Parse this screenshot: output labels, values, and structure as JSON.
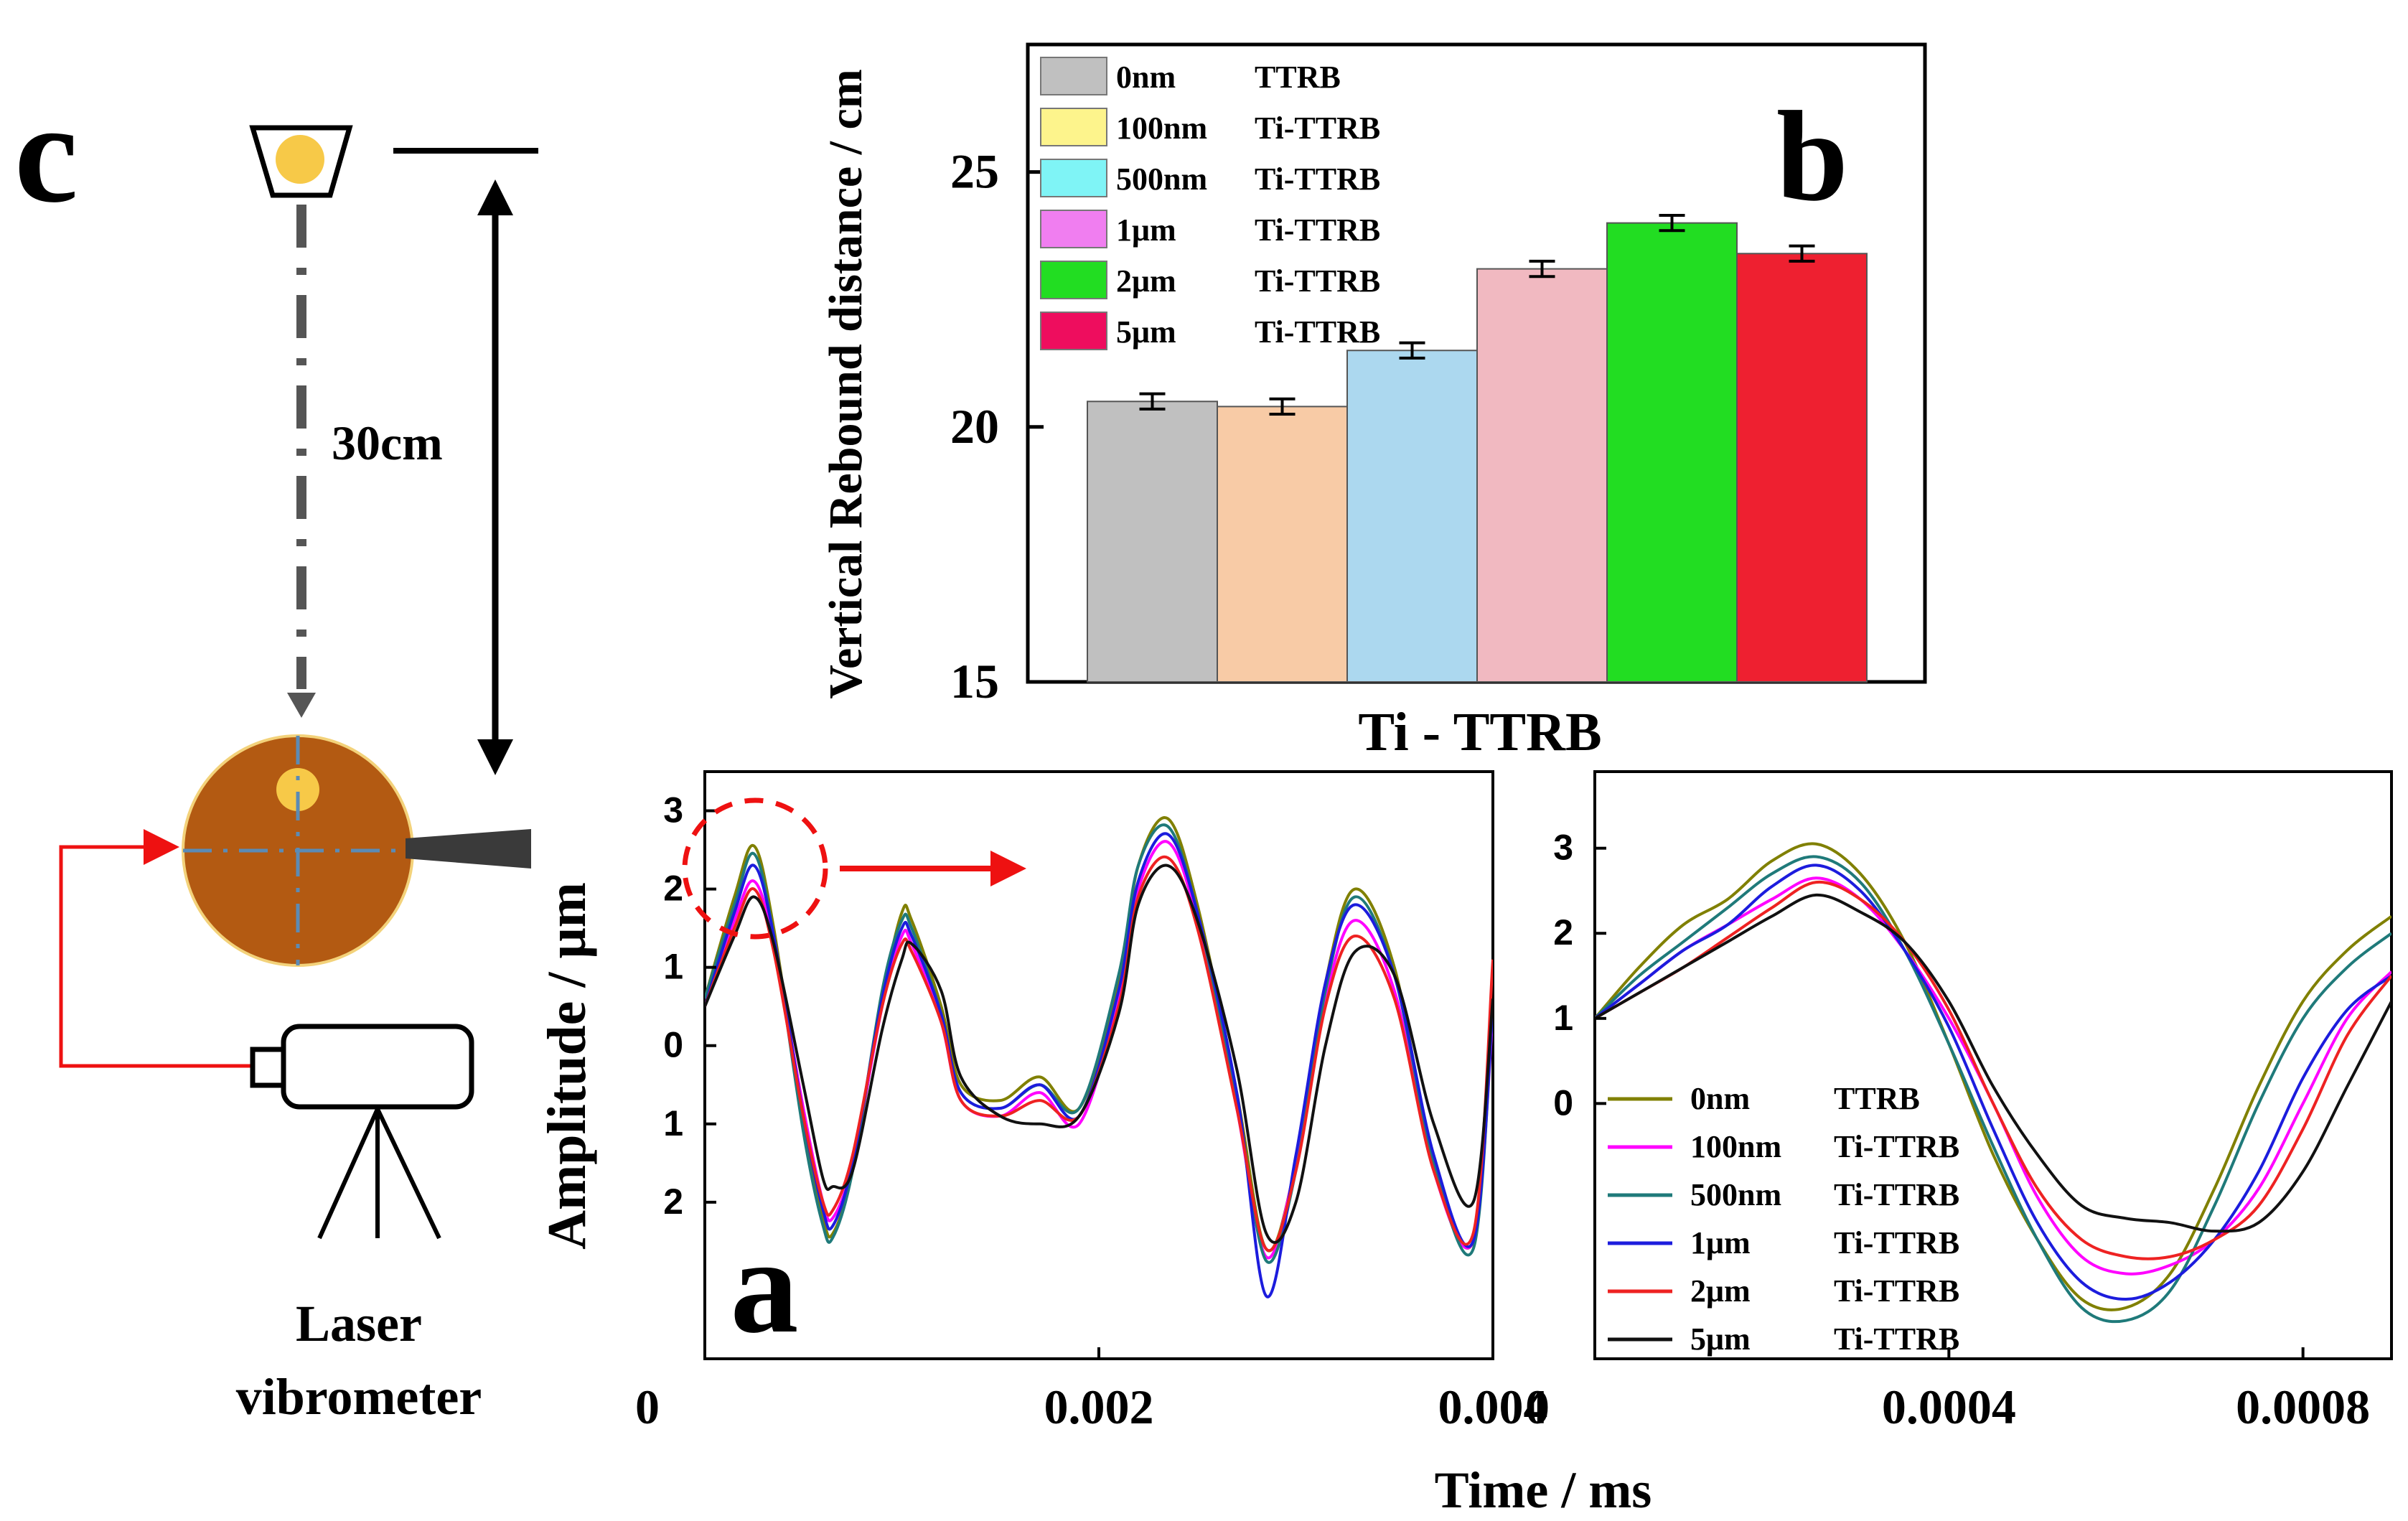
{
  "figure": {
    "panel_labels": {
      "a": "a",
      "b": "b",
      "c": "c"
    },
    "x_label_shared": "Time / ms"
  },
  "setup": {
    "distance_label": "30cm",
    "vibrometer_label_line1": "Laser",
    "vibrometer_label_line2": "vibrometer"
  },
  "chart_data": [
    {
      "id": "b",
      "type": "bar",
      "xlabel": "Ti - TTRB",
      "ylabel": "Vertical  Rebound  distance / cm",
      "ylim": [
        15,
        27.5
      ],
      "yticks": [
        15,
        20,
        25
      ],
      "categories": [
        "0nm TTRB",
        "100nm Ti-TTRB",
        "500nm Ti-TTRB",
        "1μm Ti-TTRB",
        "2μm Ti-TTRB",
        "5μm Ti-TTRB"
      ],
      "values": [
        20.5,
        20.4,
        21.5,
        23.1,
        24.0,
        23.4
      ],
      "errors": [
        0.15,
        0.15,
        0.15,
        0.15,
        0.15,
        0.15
      ],
      "bar_colors": [
        "#c0c0c0",
        "#f8cba6",
        "#acd8ef",
        "#f1b9c1",
        "#22dd22",
        "#ee2030"
      ],
      "legend": {
        "position": "top-left",
        "entries": [
          {
            "size": "0nm",
            "name": "TTRB",
            "color": "#c0c0c0"
          },
          {
            "size": "100nm",
            "name": "Ti-TTRB",
            "color": "#fdf48c"
          },
          {
            "size": "500nm",
            "name": "Ti-TTRB",
            "color": "#7ff4f6"
          },
          {
            "size": "1μm",
            "name": "Ti-TTRB",
            "color": "#f07ef0"
          },
          {
            "size": "2μm",
            "name": "Ti-TTRB",
            "color": "#22dd22"
          },
          {
            "size": "5μm",
            "name": "Ti-TTRB",
            "color": "#ee0d5e"
          }
        ]
      }
    },
    {
      "id": "a",
      "type": "line",
      "xlabel": "",
      "ylabel": "Amplitude / μm",
      "xlim": [
        0,
        0.004
      ],
      "xticks": [
        0,
        0.002,
        0.004
      ],
      "xtick_labels": [
        "0",
        "0.002",
        "0.004"
      ],
      "ylim": [
        -4,
        3.5
      ],
      "yticks": [
        3,
        2,
        1,
        0,
        -1,
        -2
      ],
      "ytick_labels": [
        "3",
        "2",
        "1",
        "0",
        "1",
        "2"
      ],
      "series": [
        {
          "color": "#808000",
          "x": [
            0,
            0.00015,
            0.00025,
            0.00035,
            0.0005,
            0.0006,
            0.00065,
            0.00075,
            0.0009,
            0.001,
            0.00105,
            0.0012,
            0.0013,
            0.0015,
            0.0017,
            0.0019,
            0.0021,
            0.0022,
            0.00235,
            0.0025,
            0.0027,
            0.00285,
            0.003,
            0.00315,
            0.0033,
            0.0035,
            0.0037,
            0.0039,
            0.004
          ],
          "y": [
            0.6,
            1.9,
            2.55,
            1.5,
            -1.0,
            -2.2,
            -2.4,
            -1.6,
            0.6,
            1.7,
            1.6,
            0.5,
            -0.5,
            -0.7,
            -0.4,
            -0.8,
            0.8,
            2.3,
            2.9,
            1.8,
            -0.6,
            -2.6,
            -1.5,
            0.8,
            2.0,
            1.0,
            -1.5,
            -2.5,
            0.6
          ]
        },
        {
          "color": "#ff00ff",
          "x": [
            0,
            0.00015,
            0.00025,
            0.00035,
            0.0005,
            0.0006,
            0.00065,
            0.00075,
            0.0009,
            0.001,
            0.00105,
            0.0012,
            0.0013,
            0.0015,
            0.0017,
            0.0019,
            0.0021,
            0.0022,
            0.00235,
            0.0025,
            0.0027,
            0.00285,
            0.003,
            0.00315,
            0.0033,
            0.0035,
            0.0037,
            0.0039,
            0.004
          ],
          "y": [
            0.5,
            1.6,
            2.1,
            1.3,
            -0.8,
            -2.0,
            -2.2,
            -1.5,
            0.5,
            1.4,
            1.3,
            0.3,
            -0.7,
            -0.9,
            -0.6,
            -1.0,
            0.6,
            2.0,
            2.6,
            1.6,
            -0.8,
            -2.7,
            -1.5,
            0.6,
            1.6,
            0.7,
            -1.6,
            -2.5,
            0.4
          ]
        },
        {
          "color": "#1f7a7a",
          "x": [
            0,
            0.00015,
            0.00025,
            0.00035,
            0.0005,
            0.0006,
            0.00065,
            0.00075,
            0.0009,
            0.001,
            0.00105,
            0.0012,
            0.0013,
            0.0015,
            0.0017,
            0.0019,
            0.0021,
            0.0022,
            0.00235,
            0.0025,
            0.0027,
            0.00285,
            0.003,
            0.00315,
            0.0033,
            0.0035,
            0.0037,
            0.0039,
            0.004
          ],
          "y": [
            0.6,
            1.8,
            2.45,
            1.4,
            -1.1,
            -2.3,
            -2.45,
            -1.6,
            0.7,
            1.6,
            1.5,
            0.4,
            -0.6,
            -0.8,
            -0.5,
            -0.8,
            0.9,
            2.3,
            2.8,
            1.7,
            -0.7,
            -2.75,
            -1.6,
            0.7,
            1.9,
            0.9,
            -1.5,
            -2.6,
            0.5
          ]
        },
        {
          "color": "#1c1cdd",
          "x": [
            0,
            0.00015,
            0.00025,
            0.00035,
            0.0005,
            0.0006,
            0.00065,
            0.00075,
            0.0009,
            0.001,
            0.00105,
            0.0012,
            0.0013,
            0.0015,
            0.0017,
            0.0019,
            0.0021,
            0.0022,
            0.00235,
            0.0025,
            0.0027,
            0.00285,
            0.003,
            0.00315,
            0.0033,
            0.0035,
            0.0037,
            0.0039,
            0.004
          ],
          "y": [
            0.5,
            1.7,
            2.3,
            1.4,
            -0.9,
            -2.1,
            -2.3,
            -1.5,
            0.6,
            1.5,
            1.4,
            0.4,
            -0.6,
            -0.8,
            -0.5,
            -0.9,
            0.7,
            2.1,
            2.7,
            1.7,
            -0.6,
            -3.2,
            -1.4,
            0.8,
            1.8,
            0.9,
            -1.4,
            -2.5,
            0.5
          ]
        },
        {
          "color": "#ee2222",
          "x": [
            0,
            0.00015,
            0.00025,
            0.00035,
            0.0005,
            0.0006,
            0.00065,
            0.00075,
            0.0009,
            0.001,
            0.00105,
            0.0012,
            0.0013,
            0.0015,
            0.0017,
            0.0019,
            0.0021,
            0.0022,
            0.00235,
            0.0025,
            0.0027,
            0.00285,
            0.003,
            0.00315,
            0.0033,
            0.0035,
            0.0037,
            0.0039,
            0.004
          ],
          "y": [
            0.5,
            1.5,
            2.0,
            1.2,
            -0.9,
            -2.0,
            -2.1,
            -1.4,
            0.5,
            1.3,
            1.2,
            0.3,
            -0.7,
            -0.9,
            -0.7,
            -0.9,
            0.5,
            1.9,
            2.4,
            1.5,
            -0.8,
            -2.6,
            -1.6,
            0.5,
            1.4,
            0.6,
            -1.6,
            -2.4,
            1.1
          ]
        },
        {
          "color": "#111111",
          "x": [
            0,
            0.00015,
            0.00025,
            0.00035,
            0.0005,
            0.0006,
            0.00065,
            0.00075,
            0.0009,
            0.001,
            0.00105,
            0.0012,
            0.0013,
            0.0015,
            0.0017,
            0.0019,
            0.0021,
            0.0022,
            0.00235,
            0.0025,
            0.0027,
            0.00285,
            0.003,
            0.00315,
            0.0033,
            0.0035,
            0.0037,
            0.0039,
            0.004
          ],
          "y": [
            0.5,
            1.4,
            1.9,
            1.3,
            -0.5,
            -1.7,
            -1.8,
            -1.6,
            0.2,
            1.1,
            1.3,
            0.7,
            -0.4,
            -0.9,
            -1.0,
            -0.9,
            0.4,
            1.8,
            2.3,
            1.6,
            -0.3,
            -2.4,
            -2.0,
            0.0,
            1.2,
            0.9,
            -1.0,
            -2.0,
            0.6
          ]
        }
      ]
    },
    {
      "id": "a-zoom",
      "type": "line",
      "xlabel": "",
      "ylabel": "",
      "xlim": [
        0,
        0.0009
      ],
      "xticks": [
        0,
        0.0004,
        0.0008
      ],
      "xtick_labels": [
        "0",
        "0.0004",
        "0.0008"
      ],
      "ylim": [
        -3.0,
        3.9
      ],
      "yticks": [
        3,
        2,
        1,
        0
      ],
      "ytick_labels": [
        "3",
        "2",
        "1",
        "0"
      ],
      "legend": {
        "position": "bottom-left",
        "entries": [
          {
            "size": "0nm",
            "name": "TTRB",
            "color": "#808000"
          },
          {
            "size": "100nm",
            "name": "Ti-TTRB",
            "color": "#ff00ff"
          },
          {
            "size": "500nm",
            "name": "Ti-TTRB",
            "color": "#1f7a7a"
          },
          {
            "size": "1μm",
            "name": "Ti-TTRB",
            "color": "#1c1cdd"
          },
          {
            "size": "2μm",
            "name": "Ti-TTRB",
            "color": "#ee2222"
          },
          {
            "size": "5μm",
            "name": "Ti-TTRB",
            "color": "#111111"
          }
        ]
      },
      "series": [
        {
          "color": "#808000",
          "x": [
            0,
            5e-05,
            0.0001,
            0.00015,
            0.0002,
            0.00025,
            0.0003,
            0.00035,
            0.0004,
            0.00045,
            0.0005,
            0.00055,
            0.0006,
            0.00065,
            0.0007,
            0.00075,
            0.0008,
            0.00085,
            0.0009
          ],
          "y": [
            1.0,
            1.6,
            2.1,
            2.4,
            2.85,
            3.05,
            2.7,
            1.9,
            0.7,
            -0.6,
            -1.6,
            -2.3,
            -2.4,
            -2.0,
            -1.0,
            0.2,
            1.2,
            1.8,
            2.2
          ]
        },
        {
          "color": "#ff00ff",
          "x": [
            0,
            5e-05,
            0.0001,
            0.00015,
            0.0002,
            0.00025,
            0.0003,
            0.00035,
            0.0004,
            0.00045,
            0.0005,
            0.00055,
            0.0006,
            0.00065,
            0.0007,
            0.00075,
            0.0008,
            0.00085,
            0.0009
          ],
          "y": [
            1.0,
            1.4,
            1.8,
            2.1,
            2.4,
            2.65,
            2.4,
            1.8,
            1.0,
            0.0,
            -1.1,
            -1.8,
            -2.0,
            -1.9,
            -1.6,
            -1.0,
            0.0,
            1.0,
            1.55
          ]
        },
        {
          "color": "#1f7a7a",
          "x": [
            0,
            5e-05,
            0.0001,
            0.00015,
            0.0002,
            0.00025,
            0.0003,
            0.00035,
            0.0004,
            0.00045,
            0.0005,
            0.00055,
            0.0006,
            0.00065,
            0.0007,
            0.00075,
            0.0008,
            0.00085,
            0.0009
          ],
          "y": [
            1.0,
            1.5,
            1.9,
            2.3,
            2.7,
            2.9,
            2.6,
            1.8,
            0.7,
            -0.5,
            -1.6,
            -2.4,
            -2.55,
            -2.2,
            -1.2,
            0.0,
            1.0,
            1.6,
            2.0
          ]
        },
        {
          "color": "#1c1cdd",
          "x": [
            0,
            5e-05,
            0.0001,
            0.00015,
            0.0002,
            0.00025,
            0.0003,
            0.00035,
            0.0004,
            0.00045,
            0.0005,
            0.00055,
            0.0006,
            0.00065,
            0.0007,
            0.00075,
            0.0008,
            0.00085,
            0.0009
          ],
          "y": [
            1.0,
            1.4,
            1.8,
            2.1,
            2.55,
            2.8,
            2.5,
            1.8,
            0.9,
            -0.3,
            -1.4,
            -2.1,
            -2.3,
            -2.1,
            -1.6,
            -0.8,
            0.3,
            1.1,
            1.5
          ]
        },
        {
          "color": "#ee2222",
          "x": [
            0,
            5e-05,
            0.0001,
            0.00015,
            0.0002,
            0.00025,
            0.0003,
            0.00035,
            0.0004,
            0.00045,
            0.0005,
            0.00055,
            0.0006,
            0.00065,
            0.0007,
            0.00075,
            0.0008,
            0.00085,
            0.0009
          ],
          "y": [
            1.0,
            1.3,
            1.6,
            1.95,
            2.3,
            2.6,
            2.4,
            1.9,
            1.1,
            0.0,
            -1.0,
            -1.6,
            -1.8,
            -1.8,
            -1.6,
            -1.2,
            -0.3,
            0.8,
            1.5
          ]
        },
        {
          "color": "#111111",
          "x": [
            0,
            5e-05,
            0.0001,
            0.00015,
            0.0002,
            0.00025,
            0.0003,
            0.00035,
            0.0004,
            0.00045,
            0.0005,
            0.00055,
            0.0006,
            0.00065,
            0.0007,
            0.00075,
            0.0008,
            0.00085,
            0.0009
          ],
          "y": [
            1.0,
            1.3,
            1.6,
            1.9,
            2.2,
            2.45,
            2.25,
            1.9,
            1.2,
            0.2,
            -0.6,
            -1.2,
            -1.35,
            -1.4,
            -1.5,
            -1.4,
            -0.8,
            0.2,
            1.2
          ]
        }
      ]
    }
  ]
}
